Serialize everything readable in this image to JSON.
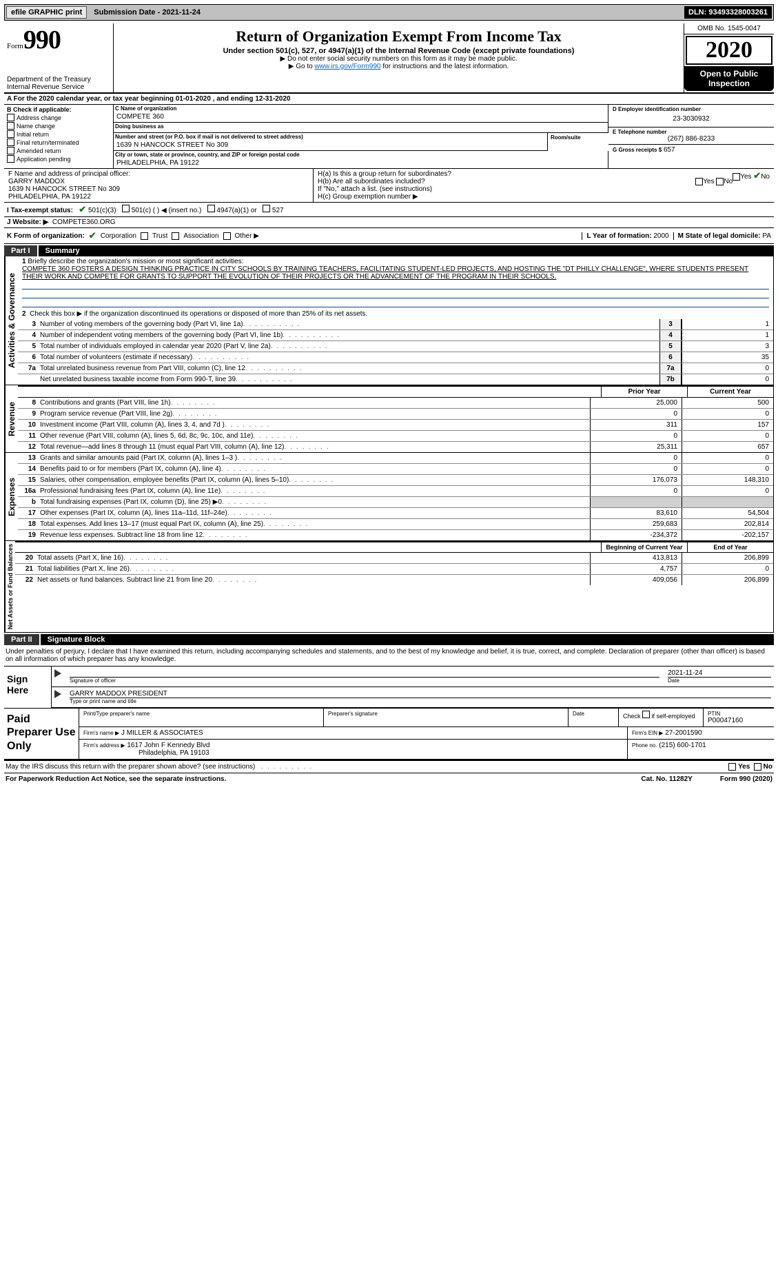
{
  "topbar": {
    "efile": "efile GRAPHIC print",
    "submission_label": "Submission Date - 2021-11-24",
    "dln": "DLN: 93493328003261"
  },
  "header": {
    "form_word": "Form",
    "form_num": "990",
    "dept1": "Department of the Treasury",
    "dept2": "Internal Revenue Service",
    "title": "Return of Organization Exempt From Income Tax",
    "sub": "Under section 501(c), 527, or 4947(a)(1) of the Internal Revenue Code (except private foundations)",
    "note1": "▶ Do not enter social security numbers on this form as it may be made public.",
    "note2_pre": "▶ Go to ",
    "note2_link": "www.irs.gov/Form990",
    "note2_post": " for instructions and the latest information.",
    "omb": "OMB No. 1545-0047",
    "year": "2020",
    "open": "Open to Public Inspection"
  },
  "period": {
    "text": "A For the 2020 calendar year, or tax year beginning 01-01-2020     , and ending 12-31-2020"
  },
  "colB": {
    "hdr": "B Check if applicable:",
    "opts": [
      "Address change",
      "Name change",
      "Initial return",
      "Final return/terminated",
      "Amended return",
      "Application pending"
    ]
  },
  "colC": {
    "name_lbl": "C Name of organization",
    "name": "COMPETE 360",
    "dba_lbl": "Doing business as",
    "dba": "",
    "addr_lbl": "Number and street (or P.O. box if mail is not delivered to street address)",
    "addr": "1639 N HANCOCK STREET No 309",
    "room_lbl": "Room/suite",
    "city_lbl": "City or town, state or province, country, and ZIP or foreign postal code",
    "city": "PHILADELPHIA, PA  19122"
  },
  "colDE": {
    "d_lbl": "D Employer identification number",
    "ein": "23-3030932",
    "e_lbl": "E Telephone number",
    "phone": "(267) 886-8233",
    "g_lbl": "G Gross receipts $",
    "g_val": "657"
  },
  "fh": {
    "f_lbl": "F  Name and address of principal officer:",
    "officer": "GARRY MADDOX",
    "officer_addr1": "1639 N HANCOCK STREET No 309",
    "officer_addr2": "PHILADELPHIA, PA  19122",
    "ha": "H(a)  Is this a group return for subordinates?",
    "hb": "H(b)  Are all subordinates included?",
    "hb_note": "If \"No,\" attach a list. (see instructions)",
    "hc": "H(c)  Group exemption number ▶",
    "yes": "Yes",
    "no": "No"
  },
  "tax_status": {
    "lbl": "I   Tax-exempt status:",
    "o1": "501(c)(3)",
    "o2": "501(c) (   ) ◀ (insert no.)",
    "o3": "4947(a)(1) or",
    "o4": "527"
  },
  "website": {
    "lbl": "J   Website: ▶",
    "val": "COMPETE360.ORG"
  },
  "kl": {
    "k_lbl": "K Form of organization:",
    "k_opts": [
      "Corporation",
      "Trust",
      "Association",
      "Other ▶"
    ],
    "l_lbl": "L Year of formation:",
    "l_val": "2000",
    "m_lbl": "M State of legal domicile:",
    "m_val": "PA"
  },
  "part1": {
    "num": "Part I",
    "title": "Summary",
    "line1_lbl": "1",
    "line1_txt": "Briefly describe the organization's mission or most significant activities:",
    "mission": "COMPETE 360 FOSTERS A DESIGN THINKING PRACTICE IN CITY SCHOOLS BY TRAINING TEACHERS, FACILITATING STUDENT-LED PROJECTS, AND HOSTING THE \"DT PHILLY CHALLENGE\", WHERE STUDENTS PRESENT THEIR WORK AND COMPETE FOR GRANTS TO SUPPORT THE EVOLUTION OF THEIR PROJECTS OR THE ADVANCEMENT OF THE PROGRAM IN THEIR SCHOOLS.",
    "line2": "Check this box ▶      if the organization discontinued its operations or disposed of more than 25% of its net assets.",
    "rows_gov": [
      {
        "n": "3",
        "d": "Number of voting members of the governing body (Part VI, line 1a)",
        "c": "3",
        "v": "1"
      },
      {
        "n": "4",
        "d": "Number of independent voting members of the governing body (Part VI, line 1b)",
        "c": "4",
        "v": "1"
      },
      {
        "n": "5",
        "d": "Total number of individuals employed in calendar year 2020 (Part V, line 2a)",
        "c": "5",
        "v": "3"
      },
      {
        "n": "6",
        "d": "Total number of volunteers (estimate if necessary)",
        "c": "6",
        "v": "35"
      },
      {
        "n": "7a",
        "d": "Total unrelated business revenue from Part VIII, column (C), line 12",
        "c": "7a",
        "v": "0"
      },
      {
        "n": "",
        "d": "Net unrelated business taxable income from Form 990-T, line 39",
        "c": "7b",
        "v": "0"
      }
    ],
    "prior_hdr": "Prior Year",
    "curr_hdr": "Current Year",
    "rows_rev": [
      {
        "n": "8",
        "d": "Contributions and grants (Part VIII, line 1h)",
        "p": "25,000",
        "c": "500"
      },
      {
        "n": "9",
        "d": "Program service revenue (Part VIII, line 2g)",
        "p": "0",
        "c": "0"
      },
      {
        "n": "10",
        "d": "Investment income (Part VIII, column (A), lines 3, 4, and 7d )",
        "p": "311",
        "c": "157"
      },
      {
        "n": "11",
        "d": "Other revenue (Part VIII, column (A), lines 5, 6d, 8c, 9c, 10c, and 11e)",
        "p": "0",
        "c": "0"
      },
      {
        "n": "12",
        "d": "Total revenue—add lines 8 through 11 (must equal Part VIII, column (A), line 12)",
        "p": "25,311",
        "c": "657"
      }
    ],
    "rows_exp": [
      {
        "n": "13",
        "d": "Grants and similar amounts paid (Part IX, column (A), lines 1–3 )",
        "p": "0",
        "c": "0"
      },
      {
        "n": "14",
        "d": "Benefits paid to or for members (Part IX, column (A), line 4)",
        "p": "0",
        "c": "0"
      },
      {
        "n": "15",
        "d": "Salaries, other compensation, employee benefits (Part IX, column (A), lines 5–10)",
        "p": "176,073",
        "c": "148,310"
      },
      {
        "n": "16a",
        "d": "Professional fundraising fees (Part IX, column (A), line 11e)",
        "p": "0",
        "c": "0"
      },
      {
        "n": "b",
        "d": "Total fundraising expenses (Part IX, column (D), line 25) ▶0",
        "p": "",
        "c": "",
        "grey": true
      },
      {
        "n": "17",
        "d": "Other expenses (Part IX, column (A), lines 11a–11d, 11f–24e)",
        "p": "83,610",
        "c": "54,504"
      },
      {
        "n": "18",
        "d": "Total expenses. Add lines 13–17 (must equal Part IX, column (A), line 25)",
        "p": "259,683",
        "c": "202,814"
      },
      {
        "n": "19",
        "d": "Revenue less expenses. Subtract line 18 from line 12",
        "p": "-234,372",
        "c": "-202,157"
      }
    ],
    "net_hdr1": "Beginning of Current Year",
    "net_hdr2": "End of Year",
    "rows_net": [
      {
        "n": "20",
        "d": "Total assets (Part X, line 16)",
        "p": "413,813",
        "c": "206,899"
      },
      {
        "n": "21",
        "d": "Total liabilities (Part X, line 26)",
        "p": "4,757",
        "c": "0"
      },
      {
        "n": "22",
        "d": "Net assets or fund balances. Subtract line 21 from line 20",
        "p": "409,056",
        "c": "206,899"
      }
    ],
    "vlabel_gov": "Activities & Governance",
    "vlabel_rev": "Revenue",
    "vlabel_exp": "Expenses",
    "vlabel_net": "Net Assets or Fund Balances"
  },
  "part2": {
    "num": "Part II",
    "title": "Signature Block",
    "decl": "Under penalties of perjury, I declare that I have examined this return, including accompanying schedules and statements, and to the best of my knowledge and belief, it is true, correct, and complete. Declaration of preparer (other than officer) is based on all information of which preparer has any knowledge.",
    "sign_here": "Sign Here",
    "sig_officer_lbl": "Signature of officer",
    "sig_date": "2021-11-24",
    "sig_date_lbl": "Date",
    "sig_name": "GARRY MADDOX  PRESIDENT",
    "sig_name_lbl": "Type or print name and title",
    "paid": "Paid Preparer Use Only",
    "prep_name_lbl": "Print/Type preparer's name",
    "prep_sig_lbl": "Preparer's signature",
    "date_lbl": "Date",
    "check_lbl": "Check         if self-employed",
    "ptin_lbl": "PTIN",
    "ptin": "P00047160",
    "firm_name_lbl": "Firm's name    ▶",
    "firm_name": "J MILLER & ASSOCIATES",
    "firm_ein_lbl": "Firm's EIN ▶",
    "firm_ein": "27-2001590",
    "firm_addr_lbl": "Firm's address ▶",
    "firm_addr1": "1617 John F Kennedy Blvd",
    "firm_addr2": "Philadelphia, PA  19103",
    "firm_phone_lbl": "Phone no.",
    "firm_phone": "(215) 600-1701"
  },
  "footer": {
    "discuss": "May the IRS discuss this return with the preparer shown above? (see instructions)",
    "yes": "Yes",
    "no": "No",
    "pra": "For Paperwork Reduction Act Notice, see the separate instructions.",
    "cat": "Cat. No. 11282Y",
    "form": "Form 990 (2020)"
  }
}
